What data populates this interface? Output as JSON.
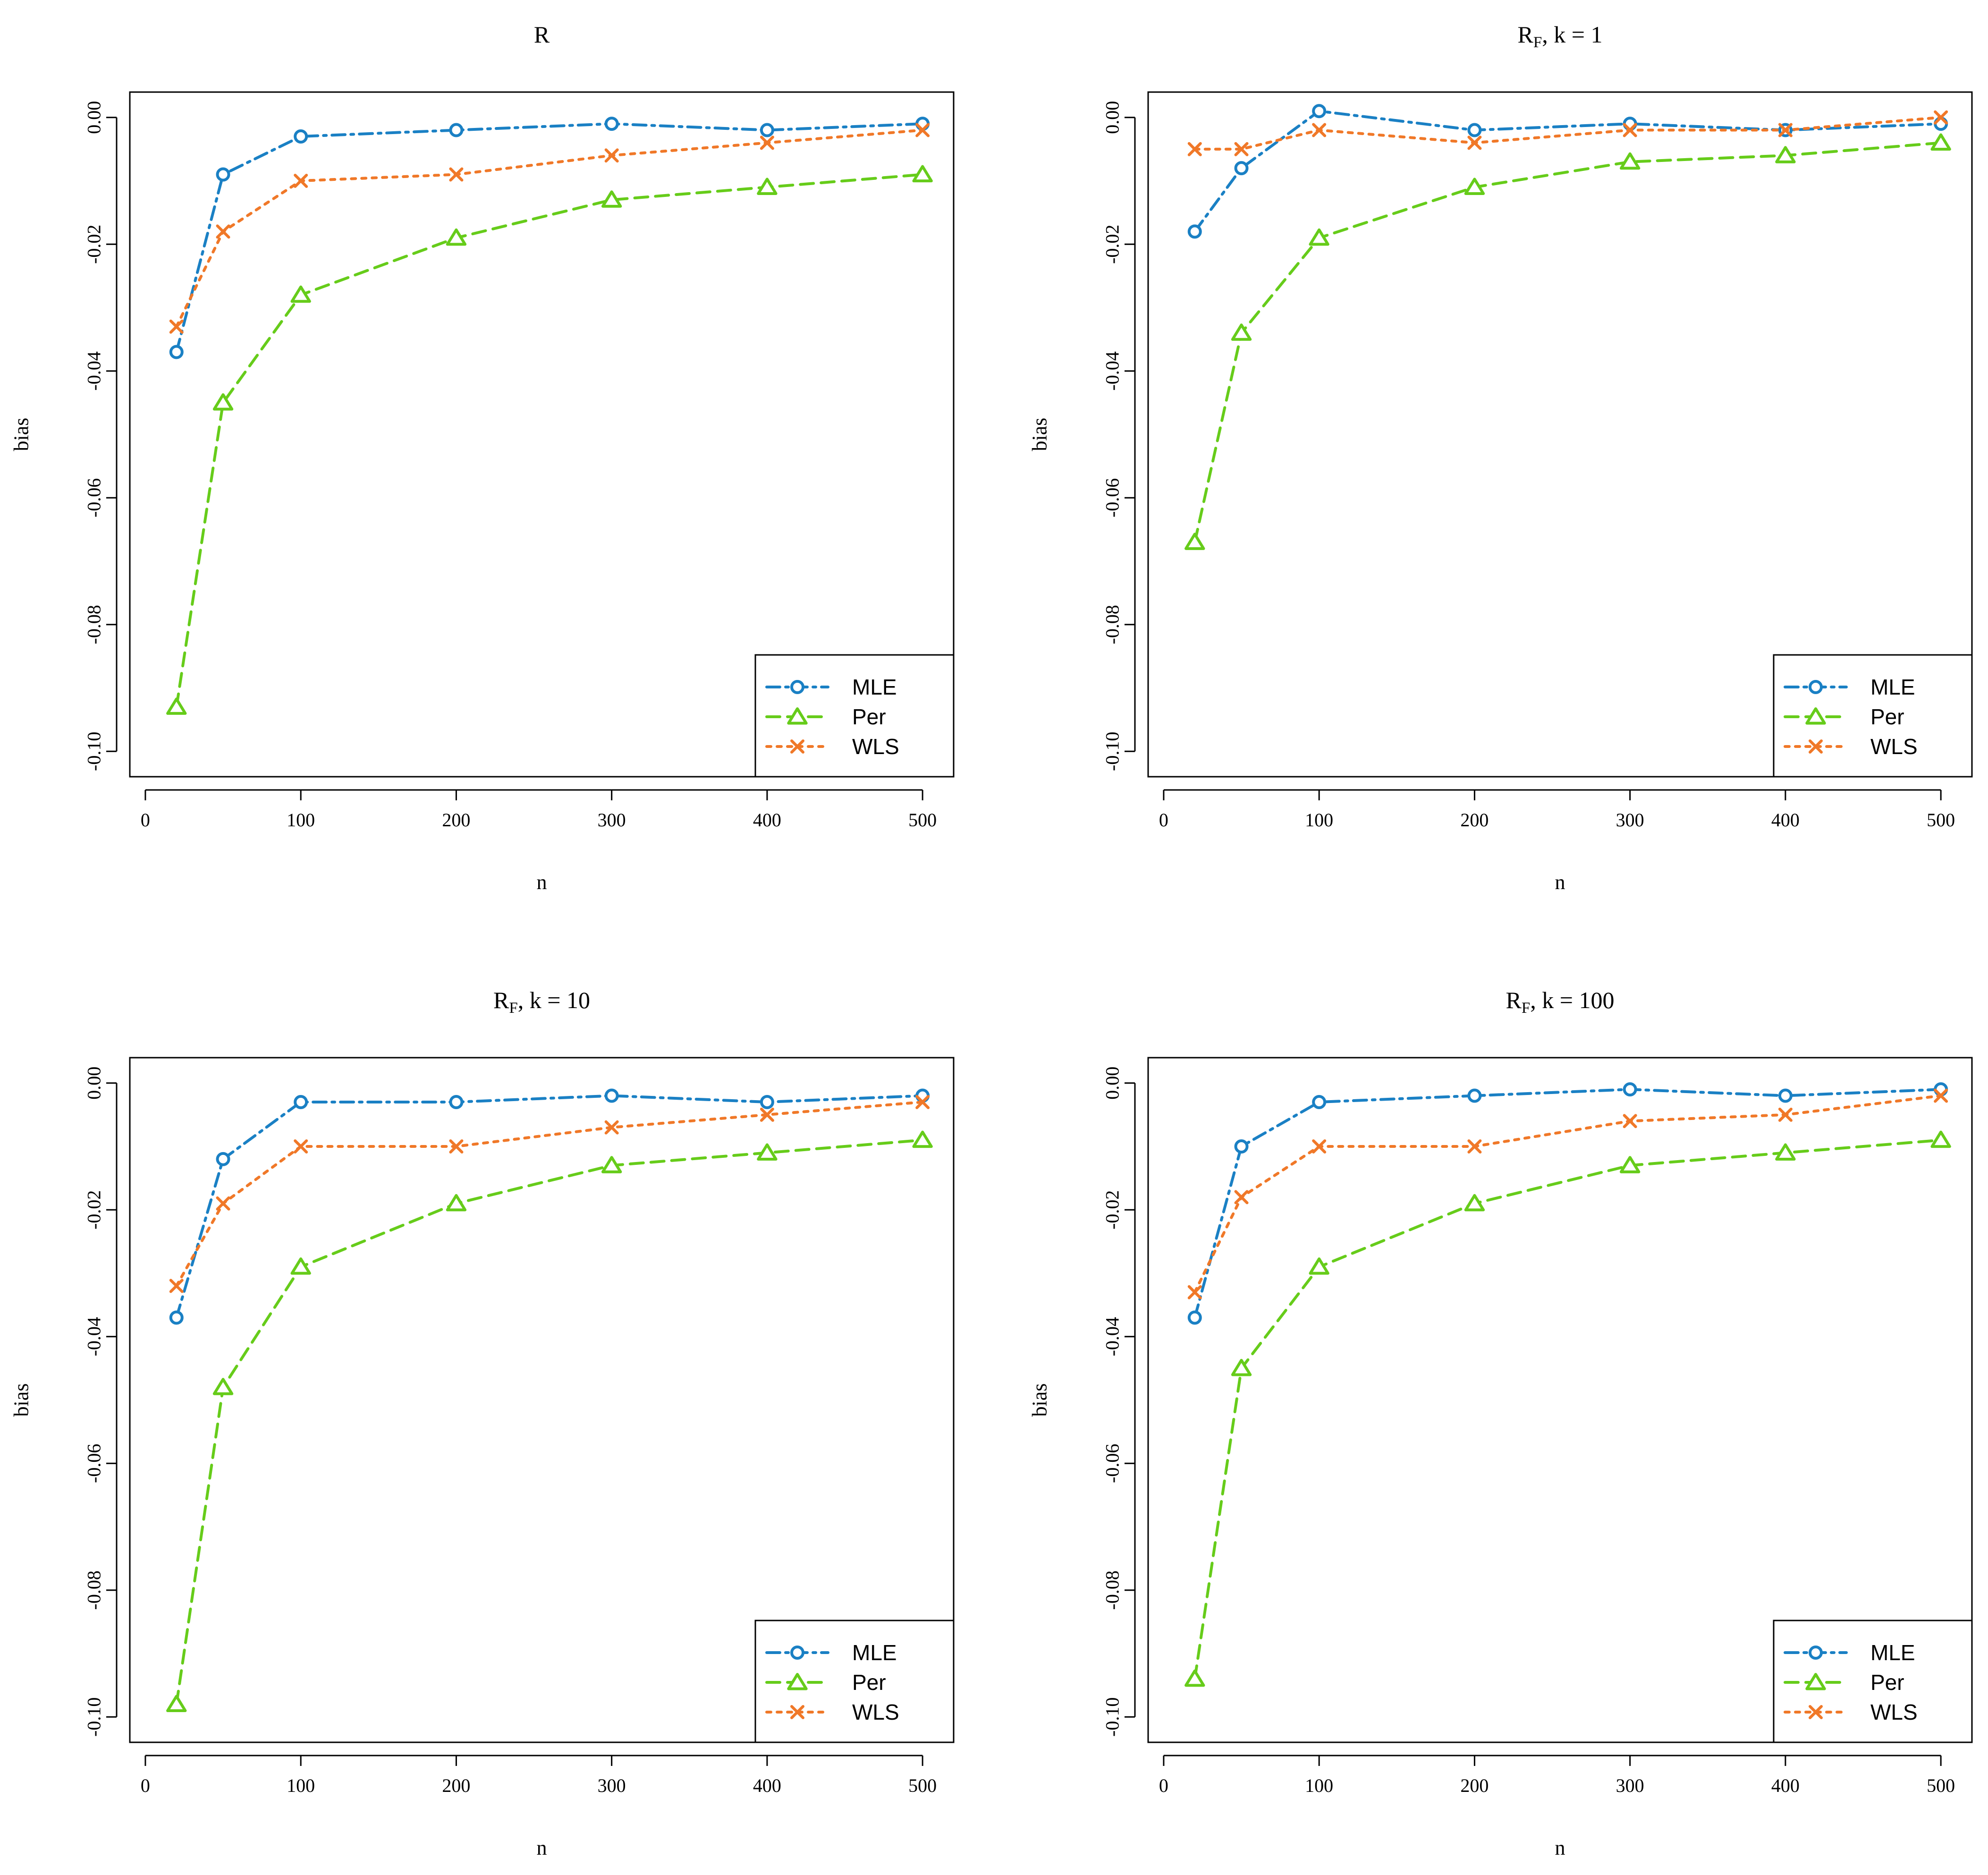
{
  "colors": {
    "MLE": "#1a80c4",
    "Per": "#66cc1a",
    "WLS": "#f07828"
  },
  "series_styles": {
    "MLE": {
      "marker": "circle-icon",
      "dash": "dashdot"
    },
    "Per": {
      "marker": "triangle-icon",
      "dash": "dashed"
    },
    "WLS": {
      "marker": "cross-icon",
      "dash": "dotted"
    }
  },
  "chart_data": [
    {
      "type": "line",
      "title": "R",
      "title_sub": "",
      "title_suffix": "",
      "xlabel": "n",
      "ylabel": "bias",
      "xlim": [
        -10,
        520
      ],
      "ylim": [
        -0.104,
        0.004
      ],
      "xticks": [
        0,
        100,
        200,
        300,
        400,
        500
      ],
      "yticks": [
        0.0,
        -0.02,
        -0.04,
        -0.06,
        -0.08,
        -0.1
      ],
      "ytick_labels": [
        "0.00",
        "-0.02",
        "-0.04",
        "-0.06",
        "-0.08",
        "-0.10"
      ],
      "legend": [
        "MLE",
        "Per",
        "WLS"
      ],
      "legend_position": "bottom-right",
      "x": [
        20,
        50,
        100,
        200,
        300,
        400,
        500
      ],
      "series": [
        {
          "name": "MLE",
          "values": [
            -0.037,
            -0.009,
            -0.003,
            -0.002,
            -0.001,
            -0.002,
            -0.001
          ]
        },
        {
          "name": "Per",
          "values": [
            -0.093,
            -0.045,
            -0.028,
            -0.019,
            -0.013,
            -0.011,
            -0.009
          ]
        },
        {
          "name": "WLS",
          "values": [
            -0.033,
            -0.018,
            -0.01,
            -0.009,
            -0.006,
            -0.004,
            -0.002
          ]
        }
      ]
    },
    {
      "type": "line",
      "title": "R",
      "title_sub": "F",
      "title_suffix": ", k = 1",
      "xlabel": "n",
      "ylabel": "bias",
      "xlim": [
        -10,
        520
      ],
      "ylim": [
        -0.104,
        0.004
      ],
      "xticks": [
        0,
        100,
        200,
        300,
        400,
        500
      ],
      "yticks": [
        0.0,
        -0.02,
        -0.04,
        -0.06,
        -0.08,
        -0.1
      ],
      "ytick_labels": [
        "0.00",
        "-0.02",
        "-0.04",
        "-0.06",
        "-0.08",
        "-0.10"
      ],
      "legend": [
        "MLE",
        "Per",
        "WLS"
      ],
      "legend_position": "bottom-right",
      "x": [
        20,
        50,
        100,
        200,
        300,
        400,
        500
      ],
      "series": [
        {
          "name": "MLE",
          "values": [
            -0.018,
            -0.008,
            0.001,
            -0.002,
            -0.001,
            -0.002,
            -0.001
          ]
        },
        {
          "name": "Per",
          "values": [
            -0.067,
            -0.034,
            -0.019,
            -0.011,
            -0.007,
            -0.006,
            -0.004
          ]
        },
        {
          "name": "WLS",
          "values": [
            -0.005,
            -0.005,
            -0.002,
            -0.004,
            -0.002,
            -0.002,
            0.0
          ]
        }
      ]
    },
    {
      "type": "line",
      "title": "R",
      "title_sub": "F",
      "title_suffix": ", k = 10",
      "xlabel": "n",
      "ylabel": "bias",
      "xlim": [
        -10,
        520
      ],
      "ylim": [
        -0.104,
        0.004
      ],
      "xticks": [
        0,
        100,
        200,
        300,
        400,
        500
      ],
      "yticks": [
        0.0,
        -0.02,
        -0.04,
        -0.06,
        -0.08,
        -0.1
      ],
      "ytick_labels": [
        "0.00",
        "-0.02",
        "-0.04",
        "-0.06",
        "-0.08",
        "-0.10"
      ],
      "legend": [
        "MLE",
        "Per",
        "WLS"
      ],
      "legend_position": "bottom-right",
      "x": [
        20,
        50,
        100,
        200,
        300,
        400,
        500
      ],
      "series": [
        {
          "name": "MLE",
          "values": [
            -0.037,
            -0.012,
            -0.003,
            -0.003,
            -0.002,
            -0.003,
            -0.002
          ]
        },
        {
          "name": "Per",
          "values": [
            -0.098,
            -0.048,
            -0.029,
            -0.019,
            -0.013,
            -0.011,
            -0.009
          ]
        },
        {
          "name": "WLS",
          "values": [
            -0.032,
            -0.019,
            -0.01,
            -0.01,
            -0.007,
            -0.005,
            -0.003
          ]
        }
      ]
    },
    {
      "type": "line",
      "title": "R",
      "title_sub": "F",
      "title_suffix": ", k = 100",
      "xlabel": "n",
      "ylabel": "bias",
      "xlim": [
        -10,
        520
      ],
      "ylim": [
        -0.104,
        0.004
      ],
      "xticks": [
        0,
        100,
        200,
        300,
        400,
        500
      ],
      "yticks": [
        0.0,
        -0.02,
        -0.04,
        -0.06,
        -0.08,
        -0.1
      ],
      "ytick_labels": [
        "0.00",
        "-0.02",
        "-0.04",
        "-0.06",
        "-0.08",
        "-0.10"
      ],
      "legend": [
        "MLE",
        "Per",
        "WLS"
      ],
      "legend_position": "bottom-right",
      "x": [
        20,
        50,
        100,
        200,
        300,
        400,
        500
      ],
      "series": [
        {
          "name": "MLE",
          "values": [
            -0.037,
            -0.01,
            -0.003,
            -0.002,
            -0.001,
            -0.002,
            -0.001
          ]
        },
        {
          "name": "Per",
          "values": [
            -0.094,
            -0.045,
            -0.029,
            -0.019,
            -0.013,
            -0.011,
            -0.009
          ]
        },
        {
          "name": "WLS",
          "values": [
            -0.033,
            -0.018,
            -0.01,
            -0.01,
            -0.006,
            -0.005,
            -0.002
          ]
        }
      ]
    }
  ]
}
